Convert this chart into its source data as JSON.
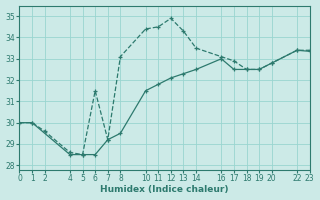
{
  "xlabel": "Humidex (Indice chaleur)",
  "bg_color": "#cceae7",
  "grid_color": "#99d5d0",
  "line_color": "#2d7a6e",
  "xlim": [
    0,
    23
  ],
  "ylim": [
    27.8,
    35.5
  ],
  "xticks": [
    0,
    1,
    2,
    4,
    5,
    6,
    7,
    8,
    10,
    11,
    12,
    13,
    14,
    16,
    17,
    18,
    19,
    20,
    22,
    23
  ],
  "yticks": [
    28,
    29,
    30,
    31,
    32,
    33,
    34,
    35
  ],
  "series1_x": [
    0,
    1,
    2,
    4,
    5,
    6,
    7,
    8,
    10,
    11,
    12,
    13,
    14,
    16,
    17,
    18,
    19,
    20,
    22,
    23
  ],
  "series1_y": [
    30.0,
    30.0,
    29.6,
    28.6,
    28.5,
    31.5,
    29.2,
    33.1,
    34.4,
    34.5,
    34.9,
    34.3,
    33.5,
    33.1,
    32.9,
    32.5,
    32.5,
    32.8,
    33.4,
    33.4
  ],
  "series2_x": [
    0,
    1,
    4,
    5,
    6,
    7,
    8,
    10,
    11,
    12,
    13,
    14,
    16,
    17,
    18,
    19,
    20,
    22,
    23
  ],
  "series2_y": [
    30.0,
    30.0,
    28.5,
    28.5,
    28.5,
    29.2,
    29.5,
    31.5,
    31.8,
    32.1,
    32.3,
    32.5,
    33.0,
    32.5,
    32.5,
    32.5,
    32.8,
    33.4,
    33.35
  ]
}
